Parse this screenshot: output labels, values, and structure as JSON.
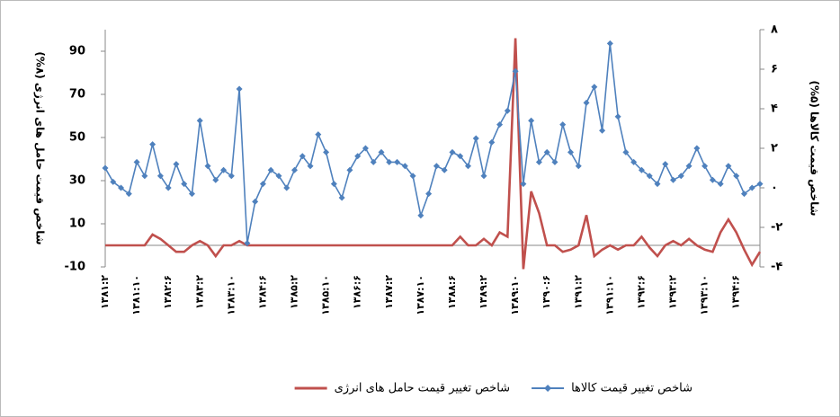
{
  "chart_data": {
    "type": "line",
    "y_label": "شاخص قیمت حامل های انرژی (۸%)",
    "y2_label": "شاخص قیمت کالاها (۵%)",
    "categories": [
      "۱۳۸۱:۲",
      null,
      null,
      null,
      "۱۳۸۱:۱۰",
      null,
      null,
      null,
      "۱۳۸۲:۶",
      null,
      null,
      null,
      "۱۳۸۳:۲",
      null,
      null,
      null,
      "۱۳۸۳:۱۰",
      null,
      null,
      null,
      "۱۳۸۴:۶",
      null,
      null,
      null,
      "۱۳۸۵:۲",
      null,
      null,
      null,
      "۱۳۸۵:۱۰",
      null,
      null,
      null,
      "۱۳۸۶:۶",
      null,
      null,
      null,
      "۱۳۸۷:۲",
      null,
      null,
      null,
      "۱۳۸۷:۱۰",
      null,
      null,
      null,
      "۱۳۸۸:۶",
      null,
      null,
      null,
      "۱۳۸۹:۲",
      null,
      null,
      null,
      "۱۳۸۹:۱۰",
      null,
      null,
      null,
      "۱۳۹۰:۶",
      null,
      null,
      null,
      "۱۳۹۱:۲",
      null,
      null,
      null,
      "۱۳۹۱:۱۰",
      null,
      null,
      null,
      "۱۳۹۲:۶",
      null,
      null,
      null,
      "۱۳۹۳:۲",
      null,
      null,
      null,
      "۱۳۹۳:۱۰",
      null,
      null,
      null,
      "۱۳۹۴:۶",
      null,
      null,
      null
    ],
    "series": [
      {
        "name": "شاخص تغییر قیمت حامل های انرژی",
        "color": "#c0504d",
        "axis": "y",
        "values": [
          0,
          0,
          0,
          0,
          0,
          0,
          5,
          3,
          0,
          -3,
          -3,
          0,
          2,
          0,
          -5,
          0,
          0,
          2,
          0,
          0,
          0,
          0,
          0,
          0,
          0,
          0,
          0,
          0,
          0,
          0,
          0,
          0,
          0,
          0,
          0,
          0,
          0,
          0,
          0,
          0,
          0,
          0,
          0,
          0,
          0,
          4,
          0,
          0,
          3,
          0,
          6,
          4,
          96,
          -11,
          25,
          15,
          0,
          0,
          -3,
          -2,
          0,
          14,
          -5,
          -2,
          0,
          -2,
          0,
          0,
          4,
          -1,
          -5,
          0,
          2,
          0,
          3,
          0,
          -2,
          -3,
          6,
          12,
          6,
          -2,
          -9,
          -3
        ]
      },
      {
        "name": "شاخص تغییر قیمت کالاها",
        "color": "#4f81bd",
        "axis": "y2",
        "values": [
          1.0,
          0.3,
          0,
          -0.3,
          1.3,
          0.6,
          2.2,
          0.6,
          0,
          1.2,
          0.2,
          -0.3,
          3.4,
          1.1,
          0.4,
          0.9,
          0.6,
          5.0,
          -2.8,
          -0.7,
          0.2,
          0.9,
          0.6,
          0,
          0.9,
          1.6,
          1.1,
          2.7,
          1.8,
          0.2,
          -0.5,
          0.9,
          1.6,
          2.0,
          1.3,
          1.8,
          1.3,
          1.3,
          1.1,
          0.6,
          -1.4,
          -0.3,
          1.1,
          0.9,
          1.8,
          1.6,
          1.1,
          2.5,
          0.6,
          2.3,
          3.2,
          3.9,
          5.9,
          0.2,
          3.4,
          1.3,
          1.8,
          1.3,
          3.2,
          1.8,
          1.1,
          4.3,
          5.1,
          2.9,
          7.3,
          3.6,
          1.8,
          1.3,
          0.9,
          0.6,
          0.2,
          1.2,
          0.4,
          0.6,
          1.1,
          2.0,
          1.1,
          0.4,
          0.2,
          1.1,
          0.6,
          -0.3,
          0,
          0.2
        ]
      }
    ],
    "ylim": [
      -10,
      100
    ],
    "yticks": [
      -10,
      10,
      30,
      50,
      70,
      90
    ],
    "y2lim": [
      -4,
      8
    ],
    "y2ticks": [
      {
        "value": -4,
        "label": "-۴"
      },
      {
        "value": -2,
        "label": "-۲"
      },
      {
        "value": 0,
        "label": "۰"
      },
      {
        "value": 2,
        "label": "۲"
      },
      {
        "value": 4,
        "label": "۴"
      },
      {
        "value": 6,
        "label": "۶"
      },
      {
        "value": 8,
        "label": "۸"
      }
    ],
    "legend": "bottom"
  }
}
